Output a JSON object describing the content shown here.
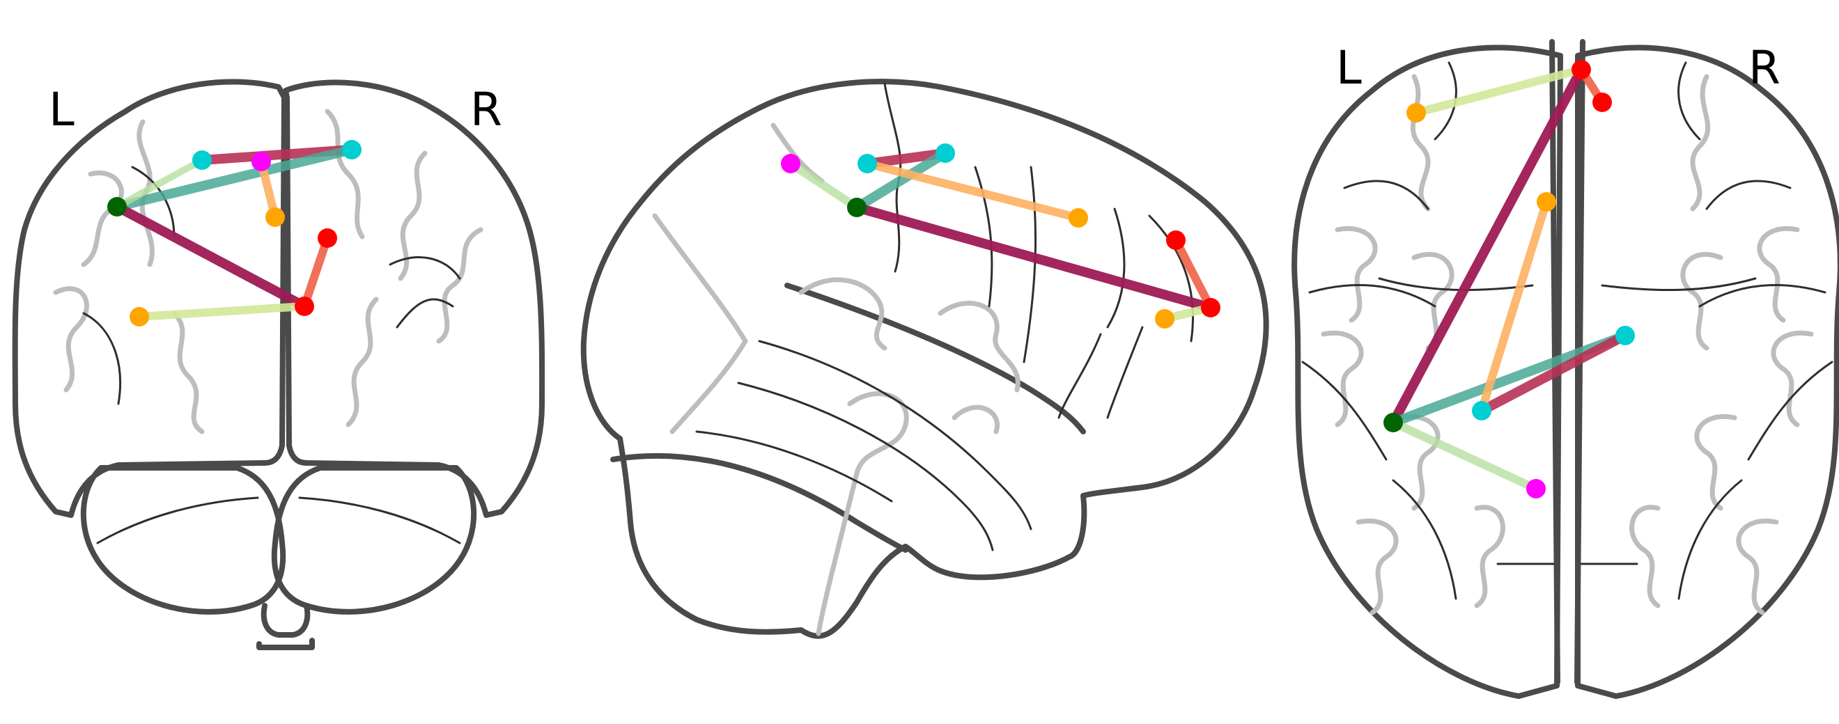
{
  "colors": {
    "green": "#006400",
    "red": "#ff0000",
    "cyan": "#00ced1",
    "magenta": "#ff00ff",
    "orange": "#ffa500",
    "edge_strong": "#9e1a55",
    "edge_medium": "#b83155",
    "edge_coral": "#ee6048",
    "edge_teal": "#4aa898",
    "edge_peach": "#fdb062",
    "edge_lime": "#d2e898",
    "edge_lightgreen": "#b7e0a0"
  },
  "views": {
    "coronal": {
      "left_label": "L",
      "right_label": "R"
    },
    "sagittal": {},
    "axial": {
      "left_label": "L",
      "right_label": "R"
    }
  }
}
